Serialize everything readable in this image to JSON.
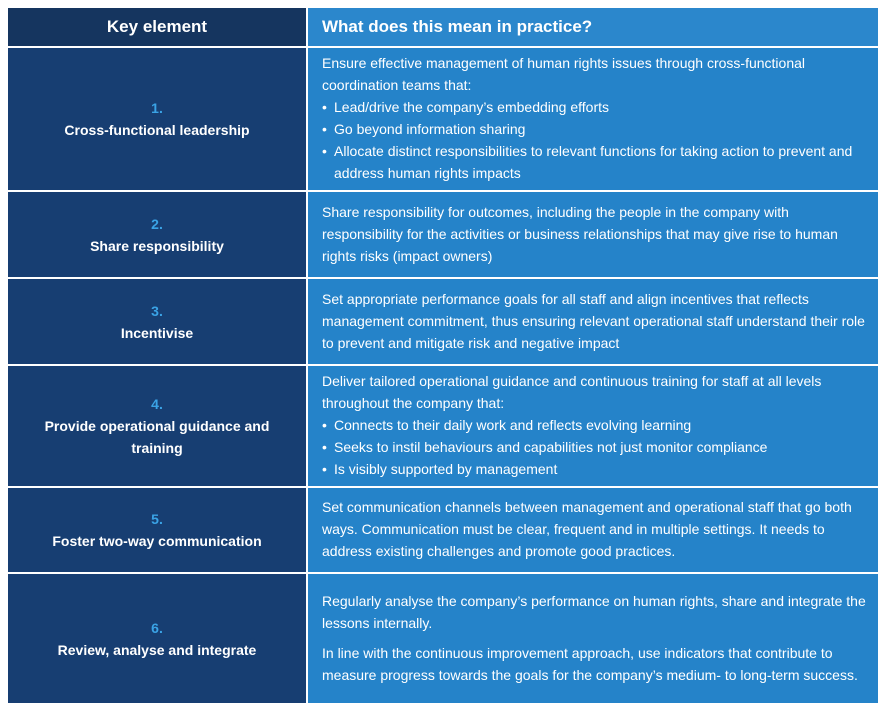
{
  "header": {
    "columns": [
      "Key element",
      "What does this mean in practice?"
    ]
  },
  "rows": [
    {
      "number": "1.",
      "element": "Cross-functional leadership",
      "paragraphs": [
        "Ensure effective management of human rights issues through cross-functional coordination teams that:"
      ],
      "bullets": [
        "Lead/drive the company’s embedding efforts",
        "Go beyond information sharing",
        "Allocate distinct responsibilities to relevant functions for taking action to prevent and address human rights impacts"
      ]
    },
    {
      "number": "2.",
      "element": "Share responsibility",
      "paragraphs": [
        "Share responsibility for outcomes, including the people in the company with responsibility for the activities or business relationships that may give rise to human rights risks (impact owners)"
      ]
    },
    {
      "number": "3.",
      "element": "Incentivise",
      "paragraphs": [
        "Set appropriate performance goals for all staff and align incentives that reflects management commitment, thus ensuring relevant operational staff understand their role to prevent and mitigate risk and negative impact"
      ]
    },
    {
      "number": "4.",
      "element": "Provide operational guidance and training",
      "paragraphs": [
        "Deliver tailored operational guidance and continuous training for staff at all levels throughout the company that:"
      ],
      "bullets": [
        "Connects to their daily work and reflects evolving learning",
        "Seeks to instil behaviours and capabilities not just monitor compliance",
        "Is visibly supported by management"
      ]
    },
    {
      "number": "5.",
      "element": "Foster two-way communication",
      "paragraphs": [
        "Set communication channels between management and operational staff that go both ways. Communication must be clear, frequent and in multiple settings. It needs to address existing challenges and promote good practices."
      ]
    },
    {
      "number": "6.",
      "element": "Review, analyse and integrate",
      "paragraphs": [
        "Regularly analyse the company’s performance on human rights, share and integrate the lessons internally.",
        "In line with the continuous improvement approach, use indicators that contribute to measure progress towards the goals for the company’s medium- to long-term success."
      ]
    }
  ]
}
